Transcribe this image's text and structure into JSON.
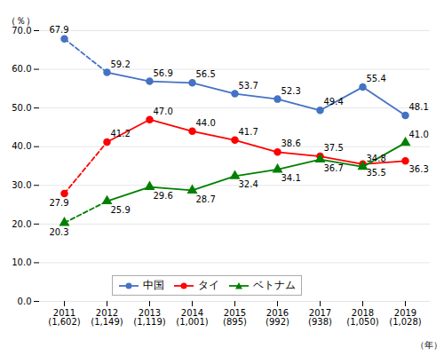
{
  "chart_data": {
    "type": "line",
    "categories": [
      "2011\n(1,602)",
      "2012\n(1,149)",
      "2013\n(1,119)",
      "2014\n(1,001)",
      "2015\n(895)",
      "2016\n(992)",
      "2017\n(938)",
      "2018\n(1,050)",
      "2019\n(1,028)"
    ],
    "series": [
      {
        "name": "中国",
        "color": "#4472C4",
        "marker": "circle",
        "values": [
          67.9,
          59.2,
          56.9,
          56.5,
          53.7,
          52.3,
          49.4,
          55.4,
          48.1
        ],
        "value_labels": [
          "67.9",
          "59.2",
          "56.9",
          "56.5",
          "53.7",
          "52.3",
          "49.4",
          "55.4",
          "48.1"
        ]
      },
      {
        "name": "タイ",
        "color": "#FF0000",
        "marker": "circle",
        "values": [
          27.9,
          41.2,
          47.0,
          44.0,
          41.7,
          38.6,
          37.5,
          35.5,
          36.3
        ],
        "value_labels": [
          "27.9",
          "41.2",
          "47.0",
          "44.0",
          "41.7",
          "38.6",
          "37.5",
          "35.5",
          "36.3"
        ]
      },
      {
        "name": "ベトナム",
        "color": "#008000",
        "marker": "triangle",
        "values": [
          20.3,
          25.9,
          29.6,
          28.7,
          32.4,
          34.1,
          36.7,
          34.8,
          41.0
        ],
        "value_labels": [
          "20.3",
          "25.9",
          "29.6",
          "28.7",
          "32.4",
          "34.1",
          "36.7",
          "34.8",
          "41.0"
        ]
      }
    ],
    "xlabel": "（年）",
    "ylabel": "（％）",
    "ylim": [
      0.0,
      70.0
    ],
    "yticks": [
      {
        "value": 0,
        "label": "0.0"
      },
      {
        "value": 10,
        "label": "10.0"
      },
      {
        "value": 20,
        "label": "20.0"
      },
      {
        "value": 30,
        "label": "30.0"
      },
      {
        "value": 40,
        "label": "40.0"
      },
      {
        "value": 50,
        "label": "50.0"
      },
      {
        "value": 60,
        "label": "60.0"
      },
      {
        "value": 70,
        "label": "70.0"
      }
    ],
    "grid": true,
    "legend": "lower center",
    "data_labels": true
  }
}
